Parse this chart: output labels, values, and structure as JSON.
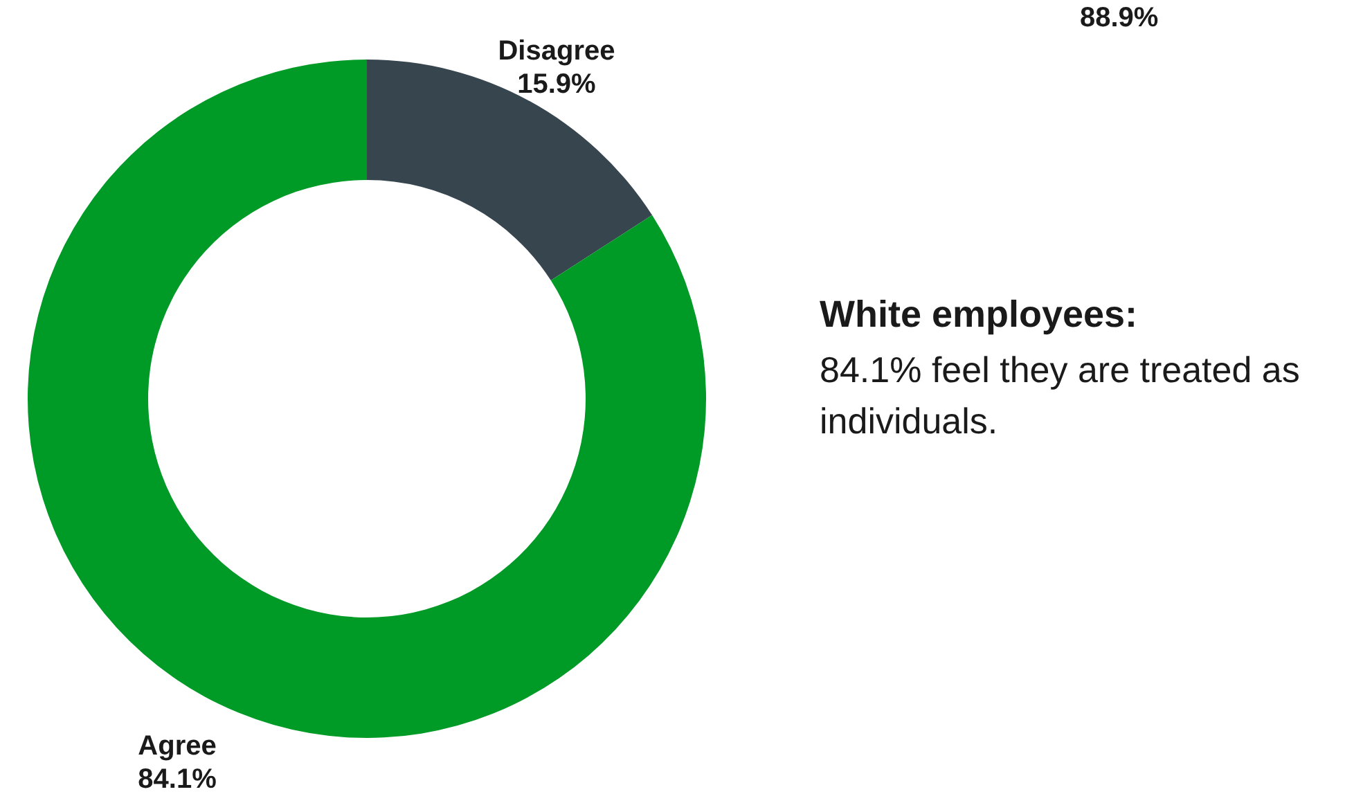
{
  "chart_data": {
    "type": "donut",
    "title": "White employees:",
    "subtitle": "84.1% feel they are treated as individuals.",
    "categories": [
      "Disagree",
      "Agree"
    ],
    "values": [
      15.9,
      84.1
    ],
    "colors": [
      "#37454f",
      "#009a26"
    ],
    "value_labels": [
      "15.9%",
      "84.1%"
    ],
    "annotations": [
      "88.9%"
    ]
  }
}
